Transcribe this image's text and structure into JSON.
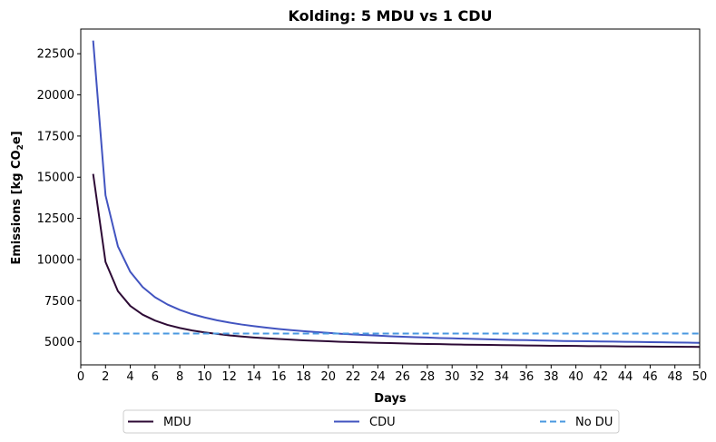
{
  "chart_data": {
    "type": "line",
    "title": "Kolding: 5 MDU vs 1 CDU",
    "xlabel": "Days",
    "ylabel_prefix": "Emissions [kg CO",
    "ylabel_sub": "2",
    "ylabel_suffix": "e]",
    "xlim": [
      0,
      50
    ],
    "ylim": [
      3600,
      24000
    ],
    "x_ticks": [
      0,
      2,
      4,
      6,
      8,
      10,
      12,
      14,
      16,
      18,
      20,
      22,
      24,
      26,
      28,
      30,
      32,
      34,
      36,
      38,
      40,
      42,
      44,
      46,
      48,
      50
    ],
    "y_ticks": [
      5000,
      7500,
      10000,
      12500,
      15000,
      17500,
      20000,
      22500
    ],
    "grid": false,
    "legend_position": "bottom-center",
    "series": [
      {
        "name": "MDU",
        "color": "#2d0a35",
        "style": "solid",
        "x": [
          1,
          2,
          3,
          4,
          5,
          6,
          7,
          8,
          9,
          10,
          11,
          12,
          13,
          14,
          15,
          16,
          17,
          18,
          19,
          20,
          21,
          22,
          23,
          24,
          25,
          26,
          27,
          28,
          29,
          30,
          31,
          32,
          33,
          34,
          35,
          36,
          37,
          38,
          39,
          40,
          41,
          42,
          43,
          44,
          45,
          46,
          47,
          48,
          49,
          50
        ],
        "y": [
          15200,
          9850,
          8080,
          7180,
          6650,
          6290,
          6030,
          5840,
          5690,
          5570,
          5480,
          5390,
          5320,
          5260,
          5210,
          5170,
          5130,
          5090,
          5060,
          5030,
          5000,
          4980,
          4960,
          4940,
          4920,
          4900,
          4880,
          4870,
          4860,
          4840,
          4830,
          4820,
          4810,
          4800,
          4790,
          4780,
          4770,
          4760,
          4755,
          4750,
          4740,
          4735,
          4730,
          4720,
          4715,
          4710,
          4705,
          4700,
          4695,
          4690
        ]
      },
      {
        "name": "CDU",
        "color": "#4254c0",
        "style": "solid",
        "x": [
          1,
          2,
          3,
          4,
          5,
          6,
          7,
          8,
          9,
          10,
          11,
          12,
          13,
          14,
          15,
          16,
          17,
          18,
          19,
          20,
          21,
          22,
          23,
          24,
          25,
          26,
          27,
          28,
          29,
          30,
          31,
          32,
          33,
          34,
          35,
          36,
          37,
          38,
          39,
          40,
          41,
          42,
          43,
          44,
          45,
          46,
          47,
          48,
          49,
          50
        ],
        "y": [
          23300,
          13900,
          10800,
          9250,
          8330,
          7710,
          7270,
          6940,
          6680,
          6480,
          6310,
          6170,
          6050,
          5950,
          5860,
          5780,
          5710,
          5650,
          5590,
          5540,
          5490,
          5450,
          5410,
          5380,
          5340,
          5310,
          5280,
          5260,
          5230,
          5210,
          5190,
          5170,
          5150,
          5130,
          5110,
          5100,
          5080,
          5070,
          5050,
          5040,
          5030,
          5020,
          5010,
          5000,
          4990,
          4980,
          4970,
          4960,
          4950,
          4940
        ]
      },
      {
        "name": "No DU",
        "color": "#4a98e0",
        "style": "dashed",
        "x": [
          1,
          50
        ],
        "y": [
          5500,
          5500
        ]
      }
    ]
  }
}
